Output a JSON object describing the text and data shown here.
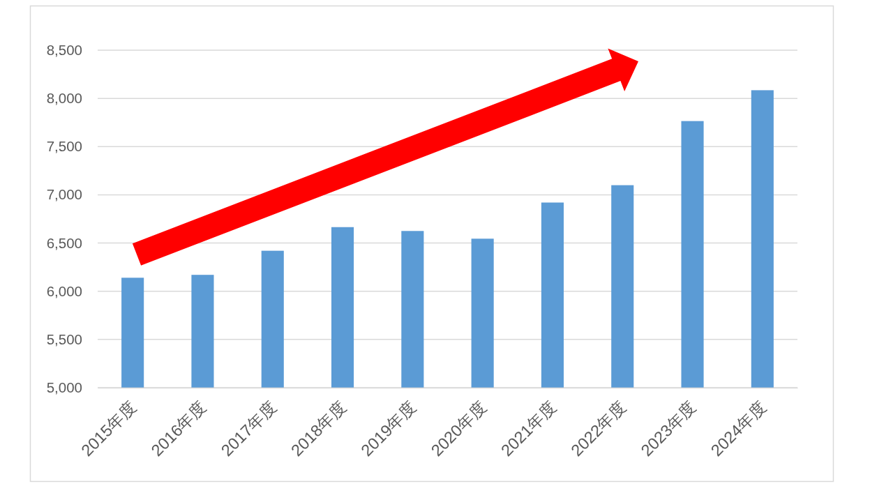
{
  "chart_data": {
    "type": "bar",
    "categories": [
      "2015年度",
      "2016年度",
      "2017年度",
      "2018年度",
      "2019年度",
      "2020年度",
      "2021年度",
      "2022年度",
      "2023年度",
      "2024年度"
    ],
    "values": [
      6140,
      6170,
      6420,
      6665,
      6625,
      6545,
      6920,
      7100,
      7765,
      8085
    ],
    "color": "#5b9bd5",
    "ylim": [
      5000,
      8500
    ],
    "yticks": [
      {
        "value": 5000,
        "label": "5,000"
      },
      {
        "value": 5500,
        "label": "5,500"
      },
      {
        "value": 6000,
        "label": "6,000"
      },
      {
        "value": 6500,
        "label": "6,500"
      },
      {
        "value": 7000,
        "label": "7,000"
      },
      {
        "value": 7500,
        "label": "7,500"
      },
      {
        "value": 8000,
        "label": "8,000"
      },
      {
        "value": 8500,
        "label": "8,500"
      }
    ],
    "grid": "y"
  }
}
